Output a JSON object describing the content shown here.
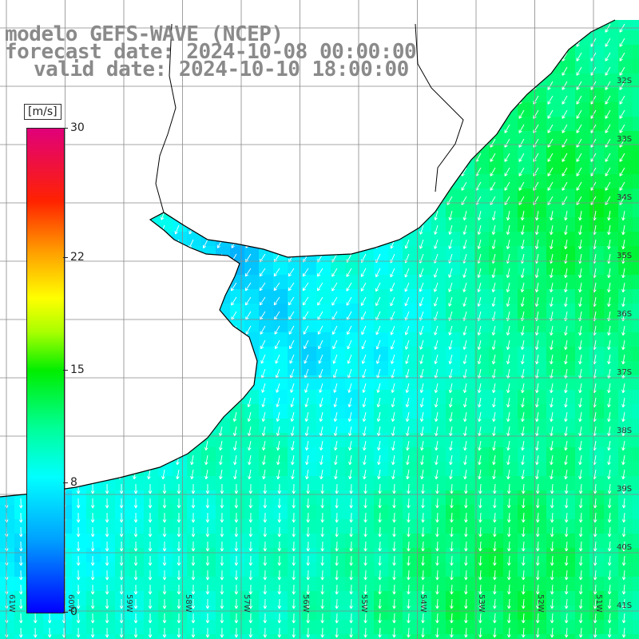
{
  "title": {
    "line1": "modelo GEFS-WAVE (NCEP)",
    "line2": "forecast date: 2024-10-08 00:00:00",
    "line3": "valid date: 2024-10-10 18:00:00"
  },
  "colorbar": {
    "unit": "[m/s]",
    "ticks": [
      "30",
      "22",
      "15",
      "8",
      "0"
    ],
    "tick_values": [
      30,
      22,
      15,
      8,
      0
    ],
    "range": [
      0,
      30
    ],
    "colors": [
      "#0000ff",
      "#00a0ff",
      "#00ffff",
      "#00ff99",
      "#00ee00",
      "#aaff00",
      "#ffff00",
      "#ff9900",
      "#ff2200",
      "#e0007a"
    ]
  },
  "map": {
    "latitude_labels": [
      "32S",
      "33S",
      "34S",
      "35S",
      "36S",
      "37S",
      "38S",
      "39S",
      "40S",
      "41S"
    ],
    "longitude_labels": [
      "61W",
      "60W",
      "59W",
      "58W",
      "57W",
      "56W",
      "55W",
      "54W",
      "53W",
      "52W",
      "51W"
    ],
    "lat_range": [
      -41.5,
      -30.5
    ],
    "lon_range": [
      -61.5,
      -50.5
    ],
    "land_color": "#ffffff",
    "grid_color": "#888888",
    "coast_color": "#000000",
    "arrow_color": "#ffffff",
    "wind_direction": "mostly from north-northeast"
  }
}
